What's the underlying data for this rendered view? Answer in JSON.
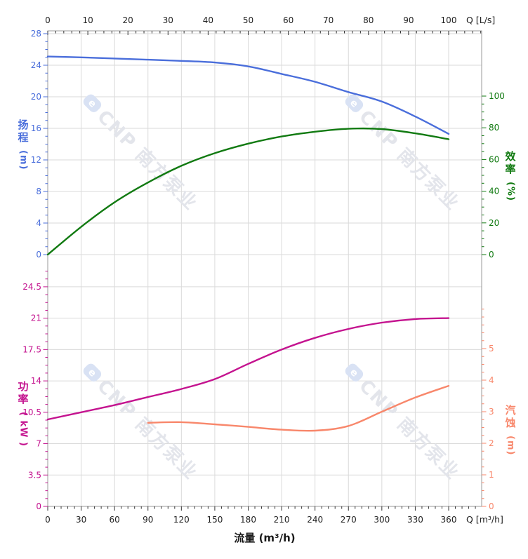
{
  "watermark": {
    "text": "CNP 南方泵业",
    "logo_letter": "e",
    "text_color": "#e3e5eb",
    "logo_color": "#d9e2f4"
  },
  "grid_color": "#dadada",
  "border_color": "#999999",
  "axis_text_color": "#222222",
  "bottom_axis": {
    "label": "Q [m³/h]",
    "title": "流量 (m³/h)",
    "min": 0,
    "max": 360,
    "major": 30,
    "minor": 6,
    "minor_overshoot": 384,
    "tick_labels": [
      "0",
      "30",
      "60",
      "90",
      "120",
      "150",
      "180",
      "210",
      "240",
      "270",
      "300",
      "330",
      "360"
    ]
  },
  "chart_data": [
    {
      "id": "head_efficiency",
      "type": "line",
      "top_axis": {
        "label": "Q [L/s]",
        "min": 0,
        "max": 100,
        "major": 10,
        "minor": 2,
        "minor_overshoot": 108,
        "tick_labels": [
          "0",
          "10",
          "20",
          "30",
          "40",
          "50",
          "60",
          "70",
          "80",
          "90",
          "100"
        ]
      },
      "left_axis": {
        "title_cjk": "扬程",
        "title_unit": "(m)",
        "color": "#4a6edb",
        "min": 0,
        "max": 28,
        "major": 4,
        "minor": 1,
        "tick_labels": [
          "0",
          "4",
          "8",
          "12",
          "16",
          "20",
          "24",
          "28"
        ]
      },
      "right_axis": {
        "title_cjk": "效率",
        "title_unit": "(%)",
        "color": "#117a11",
        "min": 0,
        "max": 100,
        "major": 20,
        "minor": 5,
        "tick_labels": [
          "0",
          "20",
          "40",
          "60",
          "80",
          "100"
        ]
      },
      "series": [
        {
          "name": "head",
          "axis": "left",
          "color": "#4a6edb",
          "points": [
            [
              0,
              25.1
            ],
            [
              30,
              25.0
            ],
            [
              60,
              24.85
            ],
            [
              90,
              24.7
            ],
            [
              120,
              24.55
            ],
            [
              150,
              24.35
            ],
            [
              180,
              23.85
            ],
            [
              210,
              22.9
            ],
            [
              240,
              21.9
            ],
            [
              270,
              20.6
            ],
            [
              300,
              19.4
            ],
            [
              330,
              17.5
            ],
            [
              360,
              15.3
            ]
          ]
        },
        {
          "name": "efficiency",
          "axis": "right",
          "color": "#117a11",
          "points": [
            [
              0,
              0
            ],
            [
              30,
              17.5
            ],
            [
              60,
              33
            ],
            [
              90,
              45.5
            ],
            [
              120,
              56
            ],
            [
              150,
              64
            ],
            [
              180,
              70
            ],
            [
              210,
              74.5
            ],
            [
              240,
              77.5
            ],
            [
              270,
              79.4
            ],
            [
              300,
              79.2
            ],
            [
              330,
              76.5
            ],
            [
              360,
              72.8
            ]
          ]
        }
      ]
    },
    {
      "id": "power_npsh",
      "type": "line",
      "left_axis": {
        "title_cjk": "功率",
        "title_unit": "( kW )",
        "color": "#c4138f",
        "min": 0,
        "max": 24.5,
        "major": 3.5,
        "minor": 0.875,
        "minor_overshoot": 26.25,
        "tick_labels": [
          "0",
          "3.5",
          "7",
          "10.5",
          "14",
          "17.5",
          "21",
          "24.5"
        ]
      },
      "right_axis": {
        "title_cjk": "汽蚀",
        "title_unit": "(m)",
        "color": "#f8876b",
        "min": 0,
        "max": 5,
        "major": 1,
        "minor": 0.25,
        "minor_overshoot": 6.25,
        "tick_labels": [
          "0",
          "1",
          "2",
          "3",
          "4",
          "5"
        ]
      },
      "series": [
        {
          "name": "power",
          "axis": "left",
          "color": "#c4138f",
          "points": [
            [
              0,
              9.7
            ],
            [
              30,
              10.5
            ],
            [
              60,
              11.3
            ],
            [
              90,
              12.2
            ],
            [
              120,
              13.1
            ],
            [
              150,
              14.2
            ],
            [
              180,
              15.9
            ],
            [
              210,
              17.5
            ],
            [
              240,
              18.8
            ],
            [
              270,
              19.8
            ],
            [
              300,
              20.5
            ],
            [
              330,
              20.9
            ],
            [
              360,
              21.0
            ]
          ]
        },
        {
          "name": "npsh",
          "axis": "right",
          "color": "#f8876b",
          "points": [
            [
              90,
              2.65
            ],
            [
              120,
              2.67
            ],
            [
              150,
              2.6
            ],
            [
              180,
              2.52
            ],
            [
              210,
              2.43
            ],
            [
              240,
              2.4
            ],
            [
              270,
              2.55
            ],
            [
              300,
              3.0
            ],
            [
              330,
              3.45
            ],
            [
              360,
              3.82
            ]
          ]
        }
      ]
    }
  ]
}
